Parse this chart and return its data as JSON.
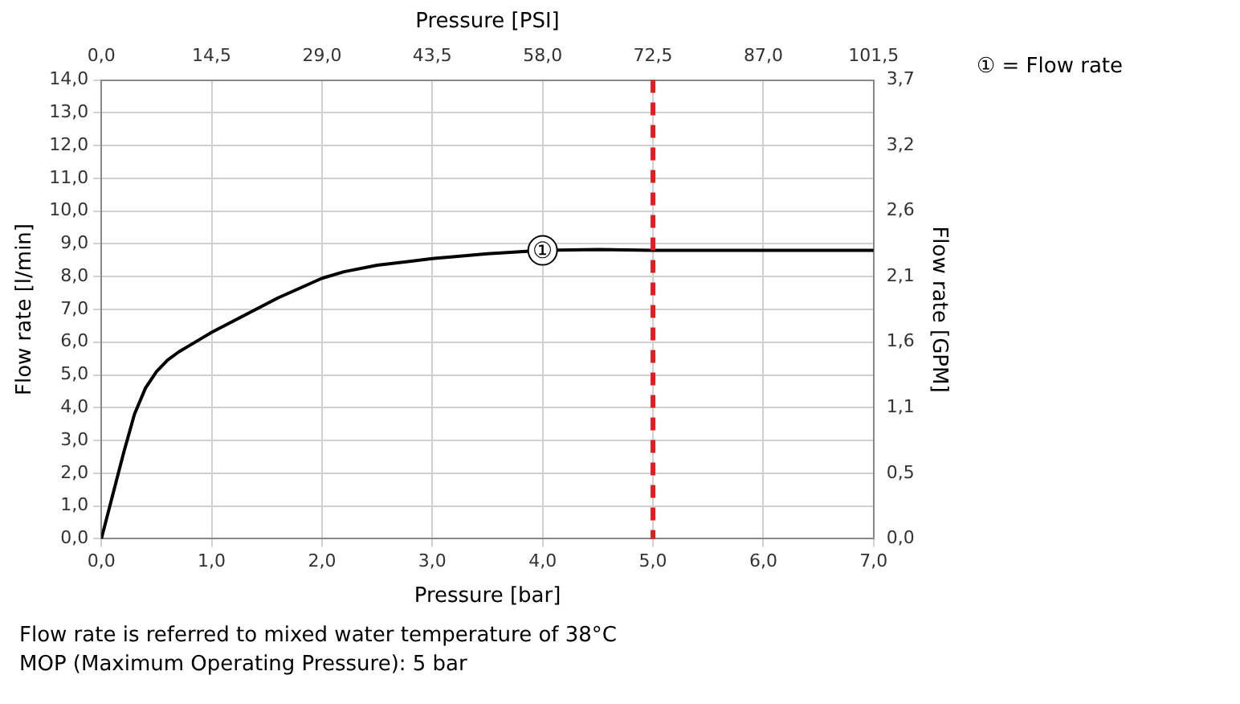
{
  "chart_data": {
    "type": "line",
    "xlabel": "Pressure [bar]",
    "x2label": "Pressure [PSI]",
    "ylabel": "Flow rate [l/min]",
    "y2label": "Flow rate [GPM]",
    "x": [
      0,
      0.1,
      0.2,
      0.3,
      0.4,
      0.5,
      0.6,
      0.7,
      0.8,
      1.0,
      1.2,
      1.4,
      1.6,
      1.8,
      2.0,
      2.2,
      2.5,
      3.0,
      3.5,
      4.0,
      4.5,
      5.0,
      7.0
    ],
    "series": [
      {
        "color": "#000000",
        "values": [
          0,
          1.3,
          2.6,
          3.8,
          4.6,
          5.1,
          5.45,
          5.7,
          5.9,
          6.3,
          6.65,
          7.0,
          7.35,
          7.65,
          7.95,
          8.15,
          8.35,
          8.55,
          8.7,
          8.8,
          8.83,
          8.8,
          8.8
        ]
      }
    ],
    "xlim": [
      0,
      7
    ],
    "xticks": [
      {
        "value": 0,
        "label": "0,0"
      },
      {
        "value": 1,
        "label": "1,0"
      },
      {
        "value": 2,
        "label": "2,0"
      },
      {
        "value": 3,
        "label": "3,0"
      },
      {
        "value": 4,
        "label": "4,0"
      },
      {
        "value": 5,
        "label": "5,0"
      },
      {
        "value": 6,
        "label": "6,0"
      },
      {
        "value": 7,
        "label": "7,0"
      }
    ],
    "x2lim": [
      0,
      101.5
    ],
    "x2ticks": [
      {
        "value": 0,
        "label": "0,0"
      },
      {
        "value": 14.5,
        "label": "14,5"
      },
      {
        "value": 29,
        "label": "29,0"
      },
      {
        "value": 43.5,
        "label": "43,5"
      },
      {
        "value": 58,
        "label": "58,0"
      },
      {
        "value": 72.5,
        "label": "72,5"
      },
      {
        "value": 87,
        "label": "87,0"
      },
      {
        "value": 101.5,
        "label": "101,5"
      }
    ],
    "ylim": [
      0,
      14
    ],
    "yticks": [
      {
        "value": 0,
        "label": "0,0"
      },
      {
        "value": 1,
        "label": "1,0"
      },
      {
        "value": 2,
        "label": "2,0"
      },
      {
        "value": 3,
        "label": "3,0"
      },
      {
        "value": 4,
        "label": "4,0"
      },
      {
        "value": 5,
        "label": "5,0"
      },
      {
        "value": 6,
        "label": "6,0"
      },
      {
        "value": 7,
        "label": "7,0"
      },
      {
        "value": 8,
        "label": "8,0"
      },
      {
        "value": 9,
        "label": "9,0"
      },
      {
        "value": 10,
        "label": "10,0"
      },
      {
        "value": 11,
        "label": "11,0"
      },
      {
        "value": 12,
        "label": "12,0"
      },
      {
        "value": 13,
        "label": "13,0"
      },
      {
        "value": 14,
        "label": "14,0"
      }
    ],
    "y2lim": [
      0,
      3.7
    ],
    "y2ticks": [
      {
        "value": 0,
        "label": "0,0"
      },
      {
        "value": 0.529,
        "label": "0,5"
      },
      {
        "value": 1.057,
        "label": "1,1"
      },
      {
        "value": 1.586,
        "label": "1,6"
      },
      {
        "value": 2.114,
        "label": "2,1"
      },
      {
        "value": 2.643,
        "label": "2,6"
      },
      {
        "value": 3.171,
        "label": "3,2"
      },
      {
        "value": 3.7,
        "label": "3,7"
      }
    ],
    "ref_lines": [
      {
        "axis": "x",
        "value": 5,
        "color": "#e02020",
        "line_style": "dashed"
      }
    ],
    "annotations": [
      {
        "text": "①",
        "x": 4.0,
        "y": 8.8
      },
      "① = Flow rate",
      "Flow rate is referred to mixed water temperature of 38°C",
      "MOP (Maximum Operating Pressure): 5 bar"
    ],
    "grid": true,
    "legend": false,
    "marker": "none",
    "line_style": "solid"
  }
}
